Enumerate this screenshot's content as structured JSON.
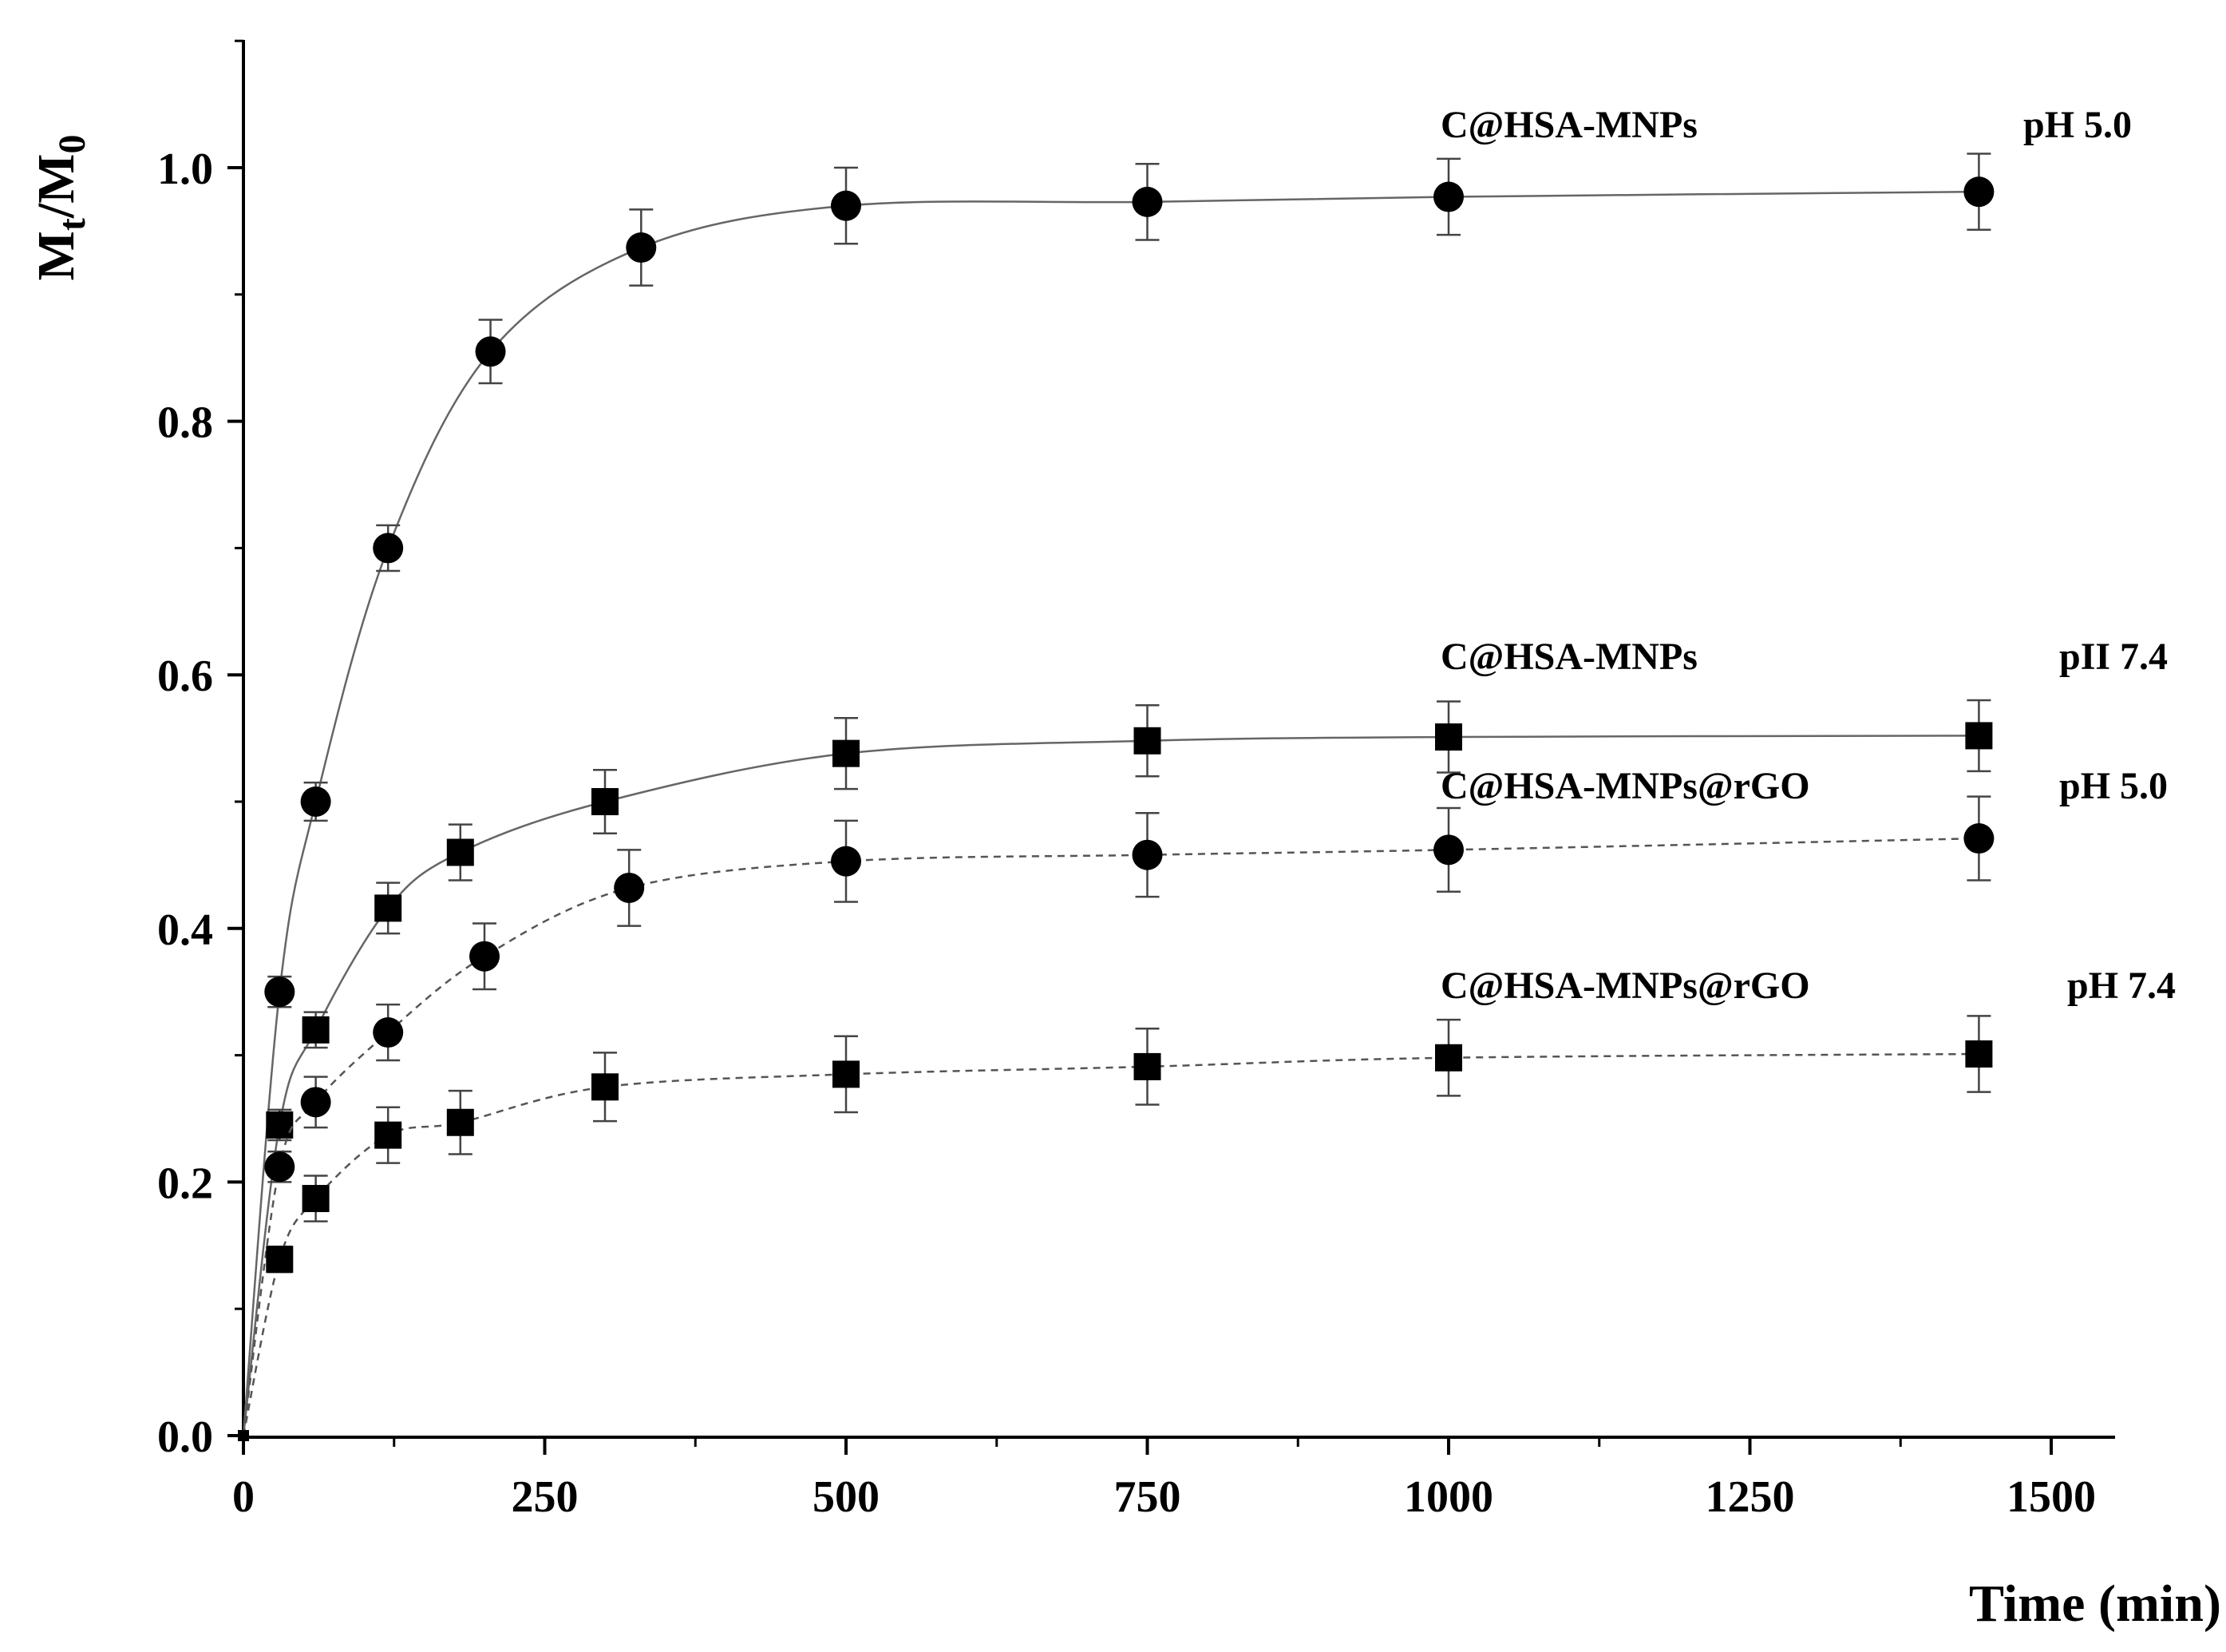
{
  "chart_data": {
    "type": "line",
    "title": "",
    "xlabel": "Time (min)",
    "ylabel": "Mt/M0",
    "ylabel_main": "M",
    "ylabel_sub1": "t",
    "ylabel_sep": "/M",
    "ylabel_sub2": "0",
    "xlim": [
      0,
      1550
    ],
    "ylim": [
      0,
      1.1
    ],
    "x_ticks": [
      0,
      250,
      500,
      750,
      1000,
      1250,
      1500
    ],
    "x_tick_labels": [
      "0",
      "250",
      "500",
      "750",
      "1000",
      "1250",
      "1500"
    ],
    "y_ticks": [
      0.0,
      0.2,
      0.4,
      0.6,
      0.8,
      1.0
    ],
    "y_tick_labels": [
      "0.0",
      "0.2",
      "0.4",
      "0.6",
      "0.8",
      "1.0"
    ],
    "grid": false,
    "legend": "annotations at right end of each series",
    "series": [
      {
        "name": "C@HSA-MNPs pH 5.0",
        "label": "C@HSA-MNPs",
        "ph": "pH 5.0",
        "marker": "circle",
        "line": "solid",
        "x": [
          0,
          30,
          60,
          120,
          205,
          330,
          500,
          750,
          1000,
          1440
        ],
        "y": [
          0.0,
          0.35,
          0.5,
          0.7,
          0.855,
          0.937,
          0.97,
          0.973,
          0.977,
          0.981
        ],
        "err": [
          0.0,
          0.012,
          0.015,
          0.018,
          0.025,
          0.03,
          0.03,
          0.03,
          0.03,
          0.03
        ]
      },
      {
        "name": "C@HSA-MNPs pH 7.4",
        "label": "C@HSA-MNPs",
        "ph": "pII 7.4",
        "marker": "square",
        "line": "solid",
        "x": [
          0,
          30,
          60,
          120,
          180,
          300,
          500,
          750,
          1000,
          1440
        ],
        "y": [
          0.0,
          0.245,
          0.32,
          0.416,
          0.46,
          0.5,
          0.538,
          0.548,
          0.551,
          0.552
        ],
        "err": [
          0.0,
          0.012,
          0.014,
          0.02,
          0.022,
          0.025,
          0.028,
          0.028,
          0.028,
          0.028
        ]
      },
      {
        "name": "C@HSA-MNPs@rGO pH 5.0",
        "label": "C@HSA-MNPs@rGO",
        "ph": "pH 5.0",
        "marker": "circle",
        "line": "dashed",
        "x": [
          0,
          30,
          60,
          120,
          200,
          320,
          500,
          750,
          1000,
          1440
        ],
        "y": [
          0.0,
          0.212,
          0.263,
          0.318,
          0.378,
          0.432,
          0.453,
          0.458,
          0.462,
          0.471
        ],
        "err": [
          0.0,
          0.012,
          0.02,
          0.022,
          0.026,
          0.03,
          0.032,
          0.033,
          0.033,
          0.033
        ]
      },
      {
        "name": "C@HSA-MNPs@rGO pH 7.4",
        "label": "C@HSA-MNPs@rGO",
        "ph": "pH 7.4",
        "marker": "square",
        "line": "dashed",
        "x": [
          0,
          30,
          60,
          120,
          180,
          300,
          500,
          750,
          1000,
          1440
        ],
        "y": [
          0.0,
          0.139,
          0.187,
          0.237,
          0.247,
          0.275,
          0.285,
          0.291,
          0.298,
          0.301
        ],
        "err": [
          0.0,
          0.01,
          0.018,
          0.022,
          0.025,
          0.027,
          0.03,
          0.03,
          0.03,
          0.03
        ]
      }
    ]
  }
}
